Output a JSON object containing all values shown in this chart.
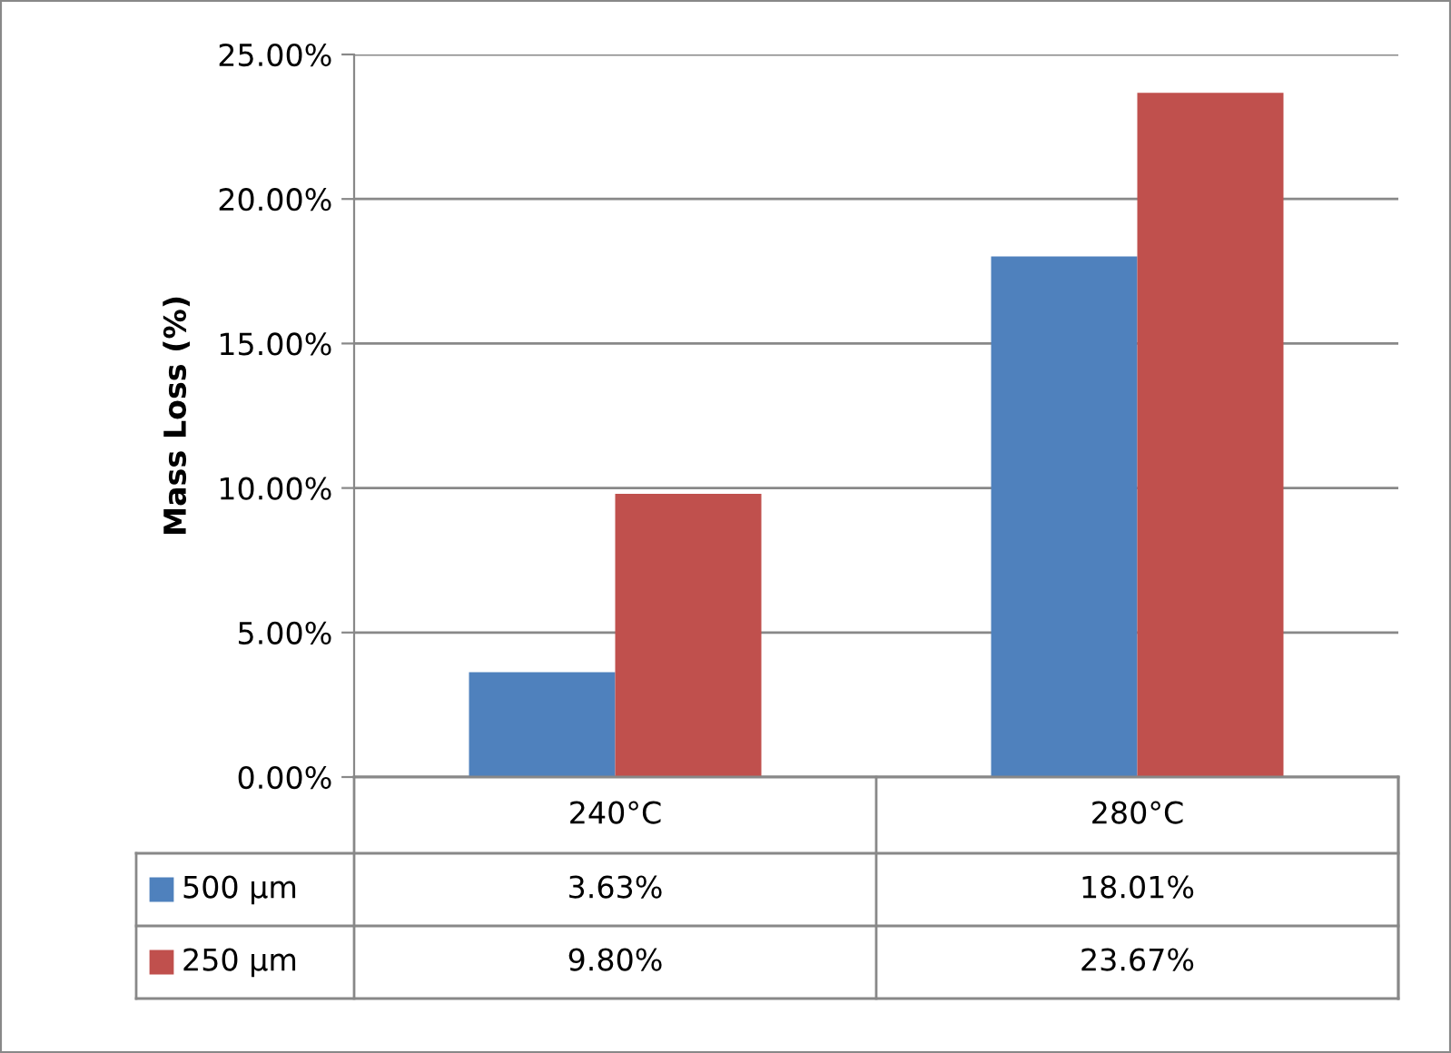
{
  "chart_data": {
    "type": "bar",
    "ylabel": "Mass Loss (%)",
    "categories": [
      "240°C",
      "280°C"
    ],
    "series": [
      {
        "name": "500 µm",
        "color": "#4f81bd",
        "values": [
          3.63,
          18.01
        ],
        "value_labels": [
          "3.63%",
          "18.01%"
        ]
      },
      {
        "name": "250 µm",
        "color": "#c0504d",
        "values": [
          9.8,
          23.67
        ],
        "value_labels": [
          "9.80%",
          "23.67%"
        ]
      }
    ],
    "ylim": [
      0,
      25
    ],
    "yticks": [
      {
        "value": 0,
        "label": "0.00%"
      },
      {
        "value": 5,
        "label": "5.00%"
      },
      {
        "value": 10,
        "label": "10.00%"
      },
      {
        "value": 15,
        "label": "15.00%"
      },
      {
        "value": 20,
        "label": "20.00%"
      },
      {
        "value": 25,
        "label": "25.00%"
      }
    ],
    "grid": "y",
    "legend": "bottom"
  }
}
